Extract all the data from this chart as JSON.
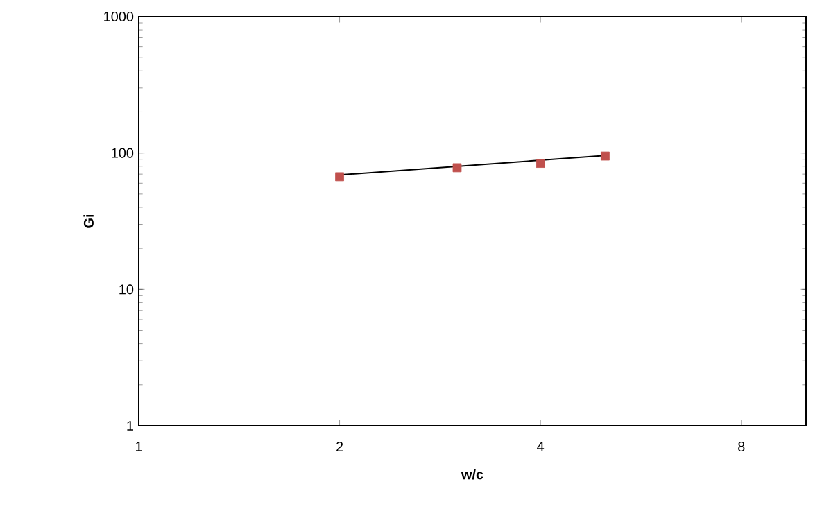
{
  "chart_data": {
    "type": "scatter",
    "xlabel": "w/c",
    "ylabel": "Gi",
    "log": "xy",
    "grid": false,
    "xlim": [
      1,
      10
    ],
    "ylim": [
      1,
      1000
    ],
    "xticks": [
      1,
      2,
      4,
      8
    ],
    "yticks": [
      1,
      10,
      100,
      1000
    ],
    "series": [
      {
        "marker": "square",
        "color": "#c0504d",
        "x": [
          2,
          3,
          4,
          5
        ],
        "values": [
          67,
          78,
          84,
          95
        ]
      },
      {
        "type": "line",
        "marker": "none",
        "color": "#000000",
        "x": [
          2,
          5
        ],
        "values": [
          69,
          96
        ]
      }
    ]
  }
}
